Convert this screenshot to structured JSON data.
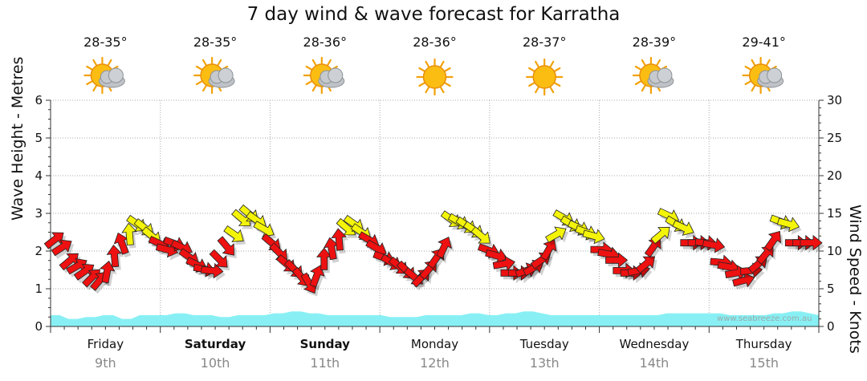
{
  "chart_data": {
    "type": "line",
    "title": "7 day wind & wave forecast for Karratha",
    "ylabel_left": "Wave Height - Metres",
    "ylabel_right": "Wind Speed - Knots",
    "left_ticks": [
      "0",
      "1",
      "2",
      "3",
      "4",
      "5",
      "6"
    ],
    "right_ticks": [
      "0",
      "5",
      "10",
      "15",
      "20",
      "25",
      "30"
    ],
    "ylim_left": [
      0,
      6
    ],
    "ylim_right": [
      0,
      30
    ],
    "days": [
      {
        "name": "Friday",
        "date": "9th",
        "temp": "28-35°",
        "icon": "sun-cloud-icon",
        "bold": false
      },
      {
        "name": "Saturday",
        "date": "10th",
        "temp": "28-35°",
        "icon": "sun-cloud-icon",
        "bold": true
      },
      {
        "name": "Sunday",
        "date": "11th",
        "temp": "28-36°",
        "icon": "sun-cloud-icon",
        "bold": true
      },
      {
        "name": "Monday",
        "date": "12th",
        "temp": "28-36°",
        "icon": "sun-icon",
        "bold": false
      },
      {
        "name": "Tuesday",
        "date": "13th",
        "temp": "28-37°",
        "icon": "sun-icon",
        "bold": false
      },
      {
        "name": "Wednesday",
        "date": "14th",
        "temp": "28-39°",
        "icon": "sun-cloud-icon",
        "bold": false
      },
      {
        "name": "Thursday",
        "date": "15th",
        "temp": "29-41°",
        "icon": "sun-cloud-icon",
        "bold": false
      }
    ],
    "wave_height": [
      0.3,
      0.3,
      0.2,
      0.2,
      0.25,
      0.25,
      0.3,
      0.3,
      0.2,
      0.2,
      0.3,
      0.3,
      0.3,
      0.3,
      0.35,
      0.35,
      0.3,
      0.3,
      0.3,
      0.25,
      0.25,
      0.3,
      0.3,
      0.3,
      0.3,
      0.35,
      0.35,
      0.4,
      0.4,
      0.35,
      0.35,
      0.3,
      0.3,
      0.3,
      0.3,
      0.3,
      0.3,
      0.3,
      0.25,
      0.25,
      0.25,
      0.25,
      0.3,
      0.3,
      0.3,
      0.3,
      0.3,
      0.35,
      0.35,
      0.3,
      0.3,
      0.35,
      0.35,
      0.4,
      0.4,
      0.35,
      0.3,
      0.3,
      0.3,
      0.3,
      0.3,
      0.3,
      0.3,
      0.3,
      0.3,
      0.3,
      0.3,
      0.3,
      0.3,
      0.35,
      0.35,
      0.35,
      0.35,
      0.35,
      0.35,
      0.35,
      0.3,
      0.3,
      0.3,
      0.3,
      0.3,
      0.35,
      0.35,
      0.4,
      0.4,
      0.35,
      0.3
    ],
    "wind": [
      {
        "speed": 11.5,
        "dir": -38
      },
      {
        "speed": 10.5,
        "dir": -33
      },
      {
        "speed": 8.7,
        "dir": -40
      },
      {
        "speed": 8,
        "dir": -30
      },
      {
        "speed": 7.3,
        "dir": -35
      },
      {
        "speed": 6.5,
        "dir": -45
      },
      {
        "speed": 6.1,
        "dir": -50
      },
      {
        "speed": 7.2,
        "dir": -80
      },
      {
        "speed": 9.3,
        "dir": -95
      },
      {
        "speed": 11,
        "dir": -110
      },
      {
        "speed": 12.2,
        "dir": -95
      },
      {
        "speed": 13.6,
        "dir": 35
      },
      {
        "speed": 13.1,
        "dir": 38
      },
      {
        "speed": 12,
        "dir": 40
      },
      {
        "speed": 11,
        "dir": 25
      },
      {
        "speed": 10.2,
        "dir": 15
      },
      {
        "speed": 11,
        "dir": 20
      },
      {
        "speed": 10.5,
        "dir": 25
      },
      {
        "speed": 9.2,
        "dir": 35
      },
      {
        "speed": 8.2,
        "dir": 25
      },
      {
        "speed": 7.6,
        "dir": 10
      },
      {
        "speed": 7.4,
        "dir": 5
      },
      {
        "speed": 8.9,
        "dir": 45
      },
      {
        "speed": 10.6,
        "dir": 50
      },
      {
        "speed": 12.2,
        "dir": 35
      },
      {
        "speed": 14.3,
        "dir": 40
      },
      {
        "speed": 14.9,
        "dir": 40
      },
      {
        "speed": 14.1,
        "dir": 35
      },
      {
        "speed": 12.9,
        "dir": 30
      },
      {
        "speed": 11.1,
        "dir": 40
      },
      {
        "speed": 9.8,
        "dir": 45
      },
      {
        "speed": 8.3,
        "dir": 40
      },
      {
        "speed": 7.6,
        "dir": 45
      },
      {
        "speed": 6.5,
        "dir": 50
      },
      {
        "speed": 5.7,
        "dir": 60
      },
      {
        "speed": 6.7,
        "dir": -70
      },
      {
        "speed": 8.9,
        "dir": -90
      },
      {
        "speed": 10.3,
        "dir": -100
      },
      {
        "speed": 11.5,
        "dir": -95
      },
      {
        "speed": 13.1,
        "dir": 40
      },
      {
        "speed": 13.6,
        "dir": 35
      },
      {
        "speed": 12.5,
        "dir": 35
      },
      {
        "speed": 11.5,
        "dir": 30
      },
      {
        "speed": 10.4,
        "dir": 30
      },
      {
        "speed": 9.1,
        "dir": 20
      },
      {
        "speed": 8.5,
        "dir": 30
      },
      {
        "speed": 8,
        "dir": 40
      },
      {
        "speed": 7.4,
        "dir": 45
      },
      {
        "speed": 6.6,
        "dir": 40
      },
      {
        "speed": 6.5,
        "dir": -45
      },
      {
        "speed": 7.6,
        "dir": -50
      },
      {
        "speed": 9.1,
        "dir": -55
      },
      {
        "speed": 10.5,
        "dir": -65
      },
      {
        "speed": 14.2,
        "dir": 35
      },
      {
        "speed": 13.9,
        "dir": 30
      },
      {
        "speed": 13.4,
        "dir": 35
      },
      {
        "speed": 12.8,
        "dir": 35
      },
      {
        "speed": 12,
        "dir": 40
      },
      {
        "speed": 10.1,
        "dir": 20
      },
      {
        "speed": 9.4,
        "dir": 15
      },
      {
        "speed": 8.3,
        "dir": -10
      },
      {
        "speed": 7.1,
        "dir": 0
      },
      {
        "speed": 7.1,
        "dir": 0
      },
      {
        "speed": 7.4,
        "dir": -20
      },
      {
        "speed": 7.8,
        "dir": -30
      },
      {
        "speed": 8.8,
        "dir": -35
      },
      {
        "speed": 10.2,
        "dir": -60
      },
      {
        "speed": 12.2,
        "dir": -30
      },
      {
        "speed": 14.4,
        "dir": 30
      },
      {
        "speed": 13.6,
        "dir": 30
      },
      {
        "speed": 13.1,
        "dir": 25
      },
      {
        "speed": 12.5,
        "dir": 20
      },
      {
        "speed": 12,
        "dir": 15
      },
      {
        "speed": 10.2,
        "dir": 0
      },
      {
        "speed": 9.6,
        "dir": 10
      },
      {
        "speed": 8.8,
        "dir": 0
      },
      {
        "speed": 7.4,
        "dir": 0
      },
      {
        "speed": 7.1,
        "dir": 0
      },
      {
        "speed": 7.4,
        "dir": -10
      },
      {
        "speed": 8.3,
        "dir": -40
      },
      {
        "speed": 10.6,
        "dir": -55
      },
      {
        "speed": 12.2,
        "dir": -40
      },
      {
        "speed": 14.7,
        "dir": 25
      },
      {
        "speed": 13.6,
        "dir": 30
      },
      {
        "speed": 13.1,
        "dir": 25
      },
      {
        "speed": 11.1,
        "dir": 0
      },
      {
        "speed": 11.1,
        "dir": 0
      },
      {
        "speed": 11.1,
        "dir": 5
      },
      {
        "speed": 10.8,
        "dir": 10
      },
      {
        "speed": 8.5,
        "dir": 5
      },
      {
        "speed": 7.9,
        "dir": 10
      },
      {
        "speed": 7.1,
        "dir": -10
      },
      {
        "speed": 6.1,
        "dir": -15
      },
      {
        "speed": 7.4,
        "dir": -5
      },
      {
        "speed": 8.3,
        "dir": -40
      },
      {
        "speed": 9.6,
        "dir": -50
      },
      {
        "speed": 11.4,
        "dir": -55
      },
      {
        "speed": 13.9,
        "dir": 20
      },
      {
        "speed": 13.6,
        "dir": 15
      },
      {
        "speed": 11.1,
        "dir": 0
      },
      {
        "speed": 11.1,
        "dir": 0
      },
      {
        "speed": 11.1,
        "dir": 0
      }
    ],
    "colors": {
      "strong": "#ee1111",
      "moderate": "#f4f40a",
      "wave": "#88f0f4",
      "grid": "#aaaaaa"
    },
    "watermark": "www.seabreeze.com.au"
  }
}
